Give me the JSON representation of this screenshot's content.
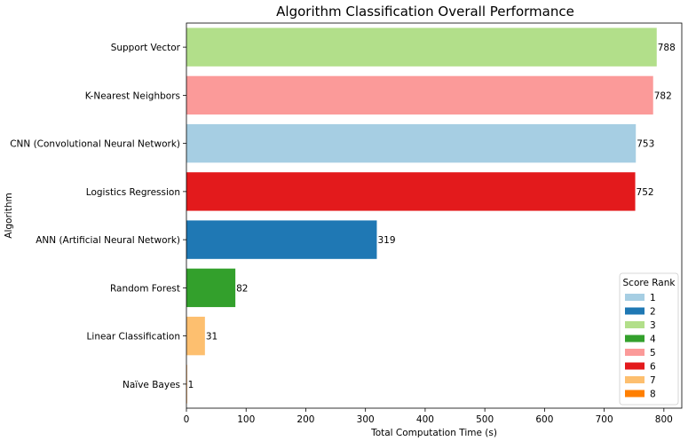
{
  "chart_data": {
    "type": "bar",
    "orientation": "horizontal",
    "title": "Algorithm Classification Overall Performance",
    "xlabel": "Total Computation Time (s)",
    "ylabel": "Algorithm",
    "xlim": [
      0,
      830
    ],
    "xticks": [
      0,
      100,
      200,
      300,
      400,
      500,
      600,
      700,
      800
    ],
    "categories": [
      "Support Vector",
      "K-Nearest Neighbors",
      "CNN (Convolutional Neural Network)",
      "Logistics Regression",
      "ANN (Artificial Neural Network)",
      "Random Forest",
      "Linear Classification",
      "Naïve Bayes"
    ],
    "values": [
      788,
      782,
      753,
      752,
      319,
      82,
      31,
      1
    ],
    "value_labels": [
      "788",
      "782",
      "753",
      "752",
      "319",
      "82",
      "31",
      "1"
    ],
    "ranks": [
      3,
      5,
      1,
      6,
      2,
      4,
      7,
      8
    ],
    "grid": false,
    "legend": {
      "title": "Score Rank",
      "placement": "lower-right",
      "entries": [
        {
          "label": "1",
          "color": "#a6cee3"
        },
        {
          "label": "2",
          "color": "#1f78b4"
        },
        {
          "label": "3",
          "color": "#b2df8a"
        },
        {
          "label": "4",
          "color": "#33a02c"
        },
        {
          "label": "5",
          "color": "#fb9a99"
        },
        {
          "label": "6",
          "color": "#e31a1c"
        },
        {
          "label": "7",
          "color": "#fdbf6f"
        },
        {
          "label": "8",
          "color": "#ff7f00"
        }
      ]
    }
  }
}
